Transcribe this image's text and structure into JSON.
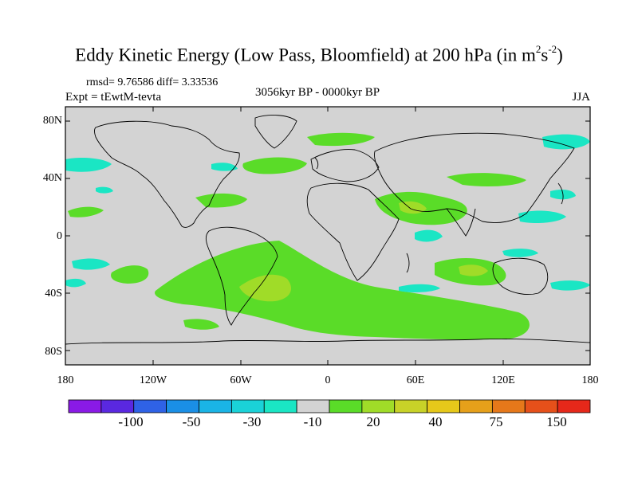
{
  "title": {
    "main": "Eddy Kinetic Energy (Low Pass, Bloomfield) at 200 hPa (in m",
    "sup1": "2",
    "mid": "s",
    "sup2": "-2",
    "end": ")"
  },
  "stats": "rmsd= 9.76586 diff= 3.33536",
  "expt": "Expt = tEwtM-tevta",
  "period": "3056kyr BP - 0000kyr BP",
  "season": "JJA",
  "axes": {
    "y_labels": [
      "80N",
      "40N",
      "0",
      "40S",
      "80S"
    ],
    "x_labels": [
      "180",
      "120W",
      "60W",
      "0",
      "60E",
      "120E",
      "180"
    ]
  },
  "colorbar": {
    "labels": [
      "-100",
      "-50",
      "-30",
      "-10",
      "20",
      "40",
      "75",
      "150"
    ],
    "colors": [
      "#8a1ae6",
      "#5a28e0",
      "#2f62e6",
      "#1a8fe6",
      "#1ab4e6",
      "#1ad2d8",
      "#1ae6c4",
      "#d3d3d3",
      "#5adc28",
      "#a0dc28",
      "#c8d228",
      "#e6c81a",
      "#e6a01a",
      "#e6781a",
      "#e6501a",
      "#e6281a"
    ]
  },
  "map": {
    "colors": {
      "neutral": "#d3d3d3",
      "pos_low": "#5adc28",
      "pos_mid": "#a0dc28",
      "neg_low": "#1ae6c4",
      "neg_mid": "#1ad2d8"
    }
  }
}
